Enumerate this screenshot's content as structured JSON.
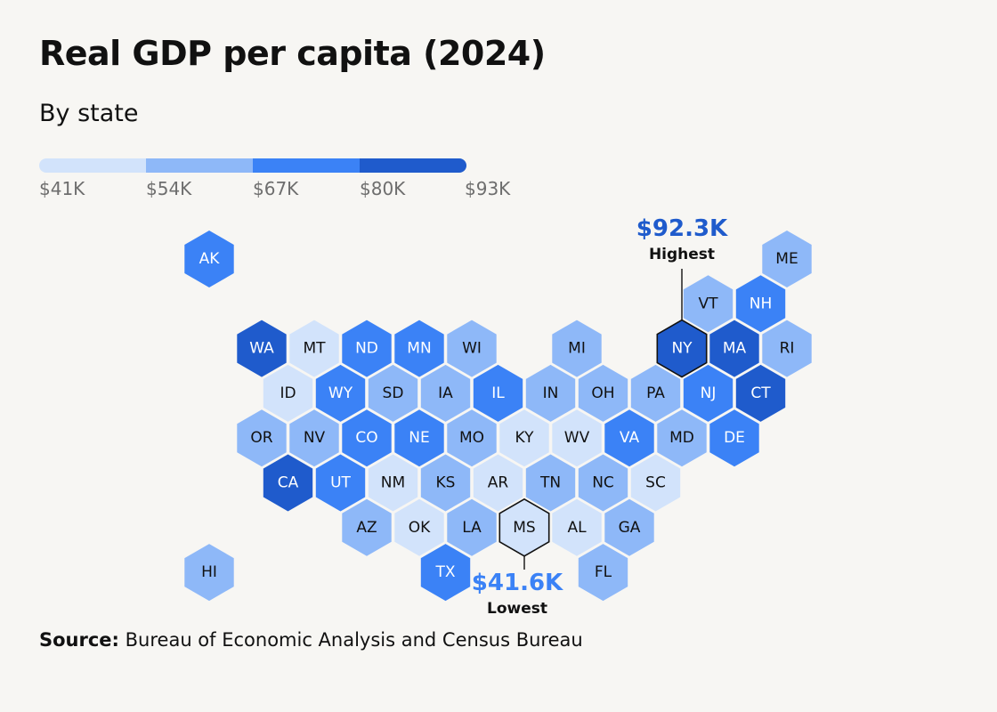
{
  "title": "Real GDP per capita (2024)",
  "subtitle": "By state",
  "legend": {
    "labels": [
      "$41K",
      "$54K",
      "$67K",
      "$80K",
      "$93K"
    ],
    "colors": [
      "#d2e3fb",
      "#8eb8f8",
      "#3b82f6",
      "#1f5bcc"
    ]
  },
  "callouts": {
    "highest": {
      "value": "$92.3K",
      "note": "Highest",
      "state": "NY",
      "color": "#1f5bcc"
    },
    "lowest": {
      "value": "$41.6K",
      "note": "Lowest",
      "state": "MS",
      "color": "#3b82f6"
    }
  },
  "source": {
    "label": "Source:",
    "text": "Bureau of Economic Analysis and Census Bureau"
  },
  "chart_data": {
    "type": "hex tile map",
    "scale": {
      "breaks": [
        41,
        54,
        67,
        80,
        93
      ],
      "unit": "$K"
    },
    "states": [
      {
        "code": "AK",
        "bin": 2,
        "row": 0,
        "col": 0
      },
      {
        "code": "ME",
        "bin": 1,
        "row": 0,
        "col": 11
      },
      {
        "code": "VT",
        "bin": 1,
        "row": 1,
        "col": 9.5
      },
      {
        "code": "NH",
        "bin": 2,
        "row": 1,
        "col": 10.5
      },
      {
        "code": "WA",
        "bin": 3,
        "row": 2,
        "col": 1
      },
      {
        "code": "MT",
        "bin": 0,
        "row": 2,
        "col": 2
      },
      {
        "code": "ND",
        "bin": 2,
        "row": 2,
        "col": 3
      },
      {
        "code": "MN",
        "bin": 2,
        "row": 2,
        "col": 4
      },
      {
        "code": "WI",
        "bin": 1,
        "row": 2,
        "col": 5
      },
      {
        "code": "MI",
        "bin": 1,
        "row": 2,
        "col": 7
      },
      {
        "code": "NY",
        "bin": 3,
        "row": 2,
        "col": 9
      },
      {
        "code": "MA",
        "bin": 3,
        "row": 2,
        "col": 10
      },
      {
        "code": "RI",
        "bin": 1,
        "row": 2,
        "col": 11
      },
      {
        "code": "ID",
        "bin": 0,
        "row": 3,
        "col": 1.5
      },
      {
        "code": "WY",
        "bin": 2,
        "row": 3,
        "col": 2.5
      },
      {
        "code": "SD",
        "bin": 1,
        "row": 3,
        "col": 3.5
      },
      {
        "code": "IA",
        "bin": 1,
        "row": 3,
        "col": 4.5
      },
      {
        "code": "IL",
        "bin": 2,
        "row": 3,
        "col": 5.5
      },
      {
        "code": "IN",
        "bin": 1,
        "row": 3,
        "col": 6.5
      },
      {
        "code": "OH",
        "bin": 1,
        "row": 3,
        "col": 7.5
      },
      {
        "code": "PA",
        "bin": 1,
        "row": 3,
        "col": 8.5
      },
      {
        "code": "NJ",
        "bin": 2,
        "row": 3,
        "col": 9.5
      },
      {
        "code": "CT",
        "bin": 3,
        "row": 3,
        "col": 10.5
      },
      {
        "code": "OR",
        "bin": 1,
        "row": 4,
        "col": 1
      },
      {
        "code": "NV",
        "bin": 1,
        "row": 4,
        "col": 2
      },
      {
        "code": "CO",
        "bin": 2,
        "row": 4,
        "col": 3
      },
      {
        "code": "NE",
        "bin": 2,
        "row": 4,
        "col": 4
      },
      {
        "code": "MO",
        "bin": 1,
        "row": 4,
        "col": 5
      },
      {
        "code": "KY",
        "bin": 0,
        "row": 4,
        "col": 6
      },
      {
        "code": "WV",
        "bin": 0,
        "row": 4,
        "col": 7
      },
      {
        "code": "VA",
        "bin": 2,
        "row": 4,
        "col": 8
      },
      {
        "code": "MD",
        "bin": 1,
        "row": 4,
        "col": 9
      },
      {
        "code": "DE",
        "bin": 2,
        "row": 4,
        "col": 10
      },
      {
        "code": "CA",
        "bin": 3,
        "row": 5,
        "col": 1.5
      },
      {
        "code": "UT",
        "bin": 2,
        "row": 5,
        "col": 2.5
      },
      {
        "code": "NM",
        "bin": 0,
        "row": 5,
        "col": 3.5
      },
      {
        "code": "KS",
        "bin": 1,
        "row": 5,
        "col": 4.5
      },
      {
        "code": "AR",
        "bin": 0,
        "row": 5,
        "col": 5.5
      },
      {
        "code": "TN",
        "bin": 1,
        "row": 5,
        "col": 6.5
      },
      {
        "code": "NC",
        "bin": 1,
        "row": 5,
        "col": 7.5
      },
      {
        "code": "SC",
        "bin": 0,
        "row": 5,
        "col": 8.5
      },
      {
        "code": "AZ",
        "bin": 1,
        "row": 6,
        "col": 3
      },
      {
        "code": "OK",
        "bin": 0,
        "row": 6,
        "col": 4
      },
      {
        "code": "LA",
        "bin": 1,
        "row": 6,
        "col": 5
      },
      {
        "code": "MS",
        "bin": 0,
        "row": 6,
        "col": 6
      },
      {
        "code": "AL",
        "bin": 0,
        "row": 6,
        "col": 7
      },
      {
        "code": "GA",
        "bin": 1,
        "row": 6,
        "col": 8
      },
      {
        "code": "HI",
        "bin": 1,
        "row": 7,
        "col": 0
      },
      {
        "code": "TX",
        "bin": 2,
        "row": 7,
        "col": 4.5
      },
      {
        "code": "FL",
        "bin": 1,
        "row": 7,
        "col": 7.5
      }
    ]
  }
}
